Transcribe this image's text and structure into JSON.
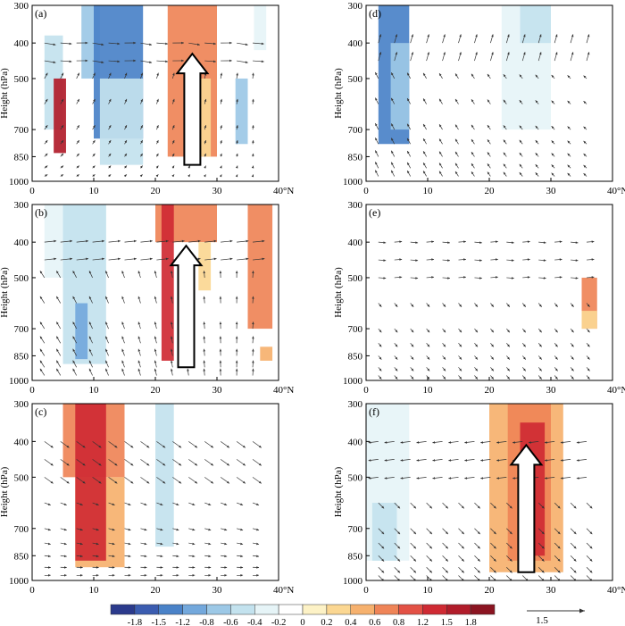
{
  "figure": {
    "colorbar": {
      "labels": [
        "-1.8",
        "-1.5",
        "-1.2",
        "-0.8",
        "-0.6",
        "-0.4",
        "-0.2",
        "0",
        "0.2",
        "0.4",
        "0.6",
        "0.8",
        "1.2",
        "1.5",
        "1.8"
      ],
      "colors": [
        "#2b3a8c",
        "#3b5cb0",
        "#4a82c8",
        "#73a8dc",
        "#9cc8e6",
        "#c3e2ee",
        "#e6f4f7",
        "#ffffff",
        "#fdf2c6",
        "#fbd792",
        "#f6b16e",
        "#ef8457",
        "#e35145",
        "#cf2a33",
        "#b11c2a",
        "#8b1421"
      ],
      "reference_vector_label": "1.5"
    }
  },
  "chart_data": [
    {
      "type": "cross-section",
      "panel_label": "(a)",
      "xlabel": "40°N",
      "ylabel": "Height (hPa)",
      "x_ticks": [
        "0",
        "10",
        "20",
        "30"
      ],
      "y_ticks": [
        "300",
        "400",
        "500",
        "700",
        "850",
        "1000"
      ],
      "xlim": [
        0,
        40
      ],
      "ylim": [
        1000,
        300
      ],
      "shaded": [
        {
          "x": [
            2,
            5
          ],
          "p": [
            380,
            700
          ],
          "value": -0.6
        },
        {
          "x": [
            3.5,
            5.5
          ],
          "p": [
            500,
            830
          ],
          "value": 1.5
        },
        {
          "x": [
            8,
            11
          ],
          "p": [
            300,
            500
          ],
          "value": -0.8
        },
        {
          "x": [
            10,
            18
          ],
          "p": [
            300,
            750
          ],
          "value": -1.5
        },
        {
          "x": [
            11,
            18
          ],
          "p": [
            500,
            900
          ],
          "value": -0.6
        },
        {
          "x": [
            22,
            30
          ],
          "p": [
            300,
            850
          ],
          "value": 0.6
        },
        {
          "x": [
            26,
            29
          ],
          "p": [
            500,
            850
          ],
          "value": 0.2
        },
        {
          "x": [
            36,
            38
          ],
          "p": [
            300,
            420
          ],
          "value": -0.4
        },
        {
          "x": [
            33,
            35
          ],
          "p": [
            500,
            780
          ],
          "value": -0.8
        }
      ],
      "arrow": {
        "x": 26,
        "p_bottom": 900,
        "p_top": 430
      }
    },
    {
      "type": "cross-section",
      "panel_label": "(b)",
      "xlabel": "40°N",
      "ylabel": "Height (hPa)",
      "x_ticks": [
        "0",
        "10",
        "20",
        "30"
      ],
      "y_ticks": [
        "300",
        "400",
        "500",
        "700",
        "850",
        "1000"
      ],
      "xlim": [
        0,
        40
      ],
      "ylim": [
        1000,
        300
      ],
      "shaded": [
        {
          "x": [
            2,
            12
          ],
          "p": [
            300,
            500
          ],
          "value": -0.4
        },
        {
          "x": [
            5,
            12
          ],
          "p": [
            300,
            900
          ],
          "value": -0.6
        },
        {
          "x": [
            7,
            9
          ],
          "p": [
            600,
            870
          ],
          "value": -1.2
        },
        {
          "x": [
            20,
            30
          ],
          "p": [
            300,
            400
          ],
          "value": 0.6
        },
        {
          "x": [
            21,
            23
          ],
          "p": [
            300,
            880
          ],
          "value": 1.2
        },
        {
          "x": [
            27,
            29
          ],
          "p": [
            400,
            550
          ],
          "value": 0.2
        },
        {
          "x": [
            35,
            39
          ],
          "p": [
            300,
            700
          ],
          "value": 0.6
        },
        {
          "x": [
            37,
            39
          ],
          "p": [
            800,
            880
          ],
          "value": 0.4
        }
      ],
      "arrow": {
        "x": 25,
        "p_bottom": 920,
        "p_top": 410
      }
    },
    {
      "type": "cross-section",
      "panel_label": "(c)",
      "xlabel": "40°N",
      "ylabel": "Height (hPa)",
      "x_ticks": [
        "0",
        "10",
        "20",
        "30"
      ],
      "y_ticks": [
        "300",
        "400",
        "500",
        "700",
        "850",
        "1000"
      ],
      "xlim": [
        0,
        40
      ],
      "ylim": [
        1000,
        300
      ],
      "shaded": [
        {
          "x": [
            5,
            15
          ],
          "p": [
            300,
            500
          ],
          "value": 0.6
        },
        {
          "x": [
            7,
            15
          ],
          "p": [
            500,
            920
          ],
          "value": 0.4
        },
        {
          "x": [
            7,
            12
          ],
          "p": [
            300,
            880
          ],
          "value": 1.2
        },
        {
          "x": [
            20,
            23
          ],
          "p": [
            300,
            800
          ],
          "value": -0.6
        }
      ]
    },
    {
      "type": "cross-section",
      "panel_label": "(d)",
      "xlabel": "40°N",
      "ylabel": "Height (hPa)",
      "x_ticks": [
        "0",
        "10",
        "20",
        "30"
      ],
      "y_ticks": [
        "300",
        "400",
        "500",
        "700",
        "850",
        "1000"
      ],
      "xlim": [
        0,
        40
      ],
      "ylim": [
        1000,
        300
      ],
      "shaded": [
        {
          "x": [
            2,
            7
          ],
          "p": [
            300,
            780
          ],
          "value": -1.5
        },
        {
          "x": [
            4,
            7
          ],
          "p": [
            400,
            700
          ],
          "value": -0.8
        },
        {
          "x": [
            22,
            30
          ],
          "p": [
            300,
            700
          ],
          "value": -0.4
        },
        {
          "x": [
            25,
            30
          ],
          "p": [
            300,
            400
          ],
          "value": -0.6
        }
      ]
    },
    {
      "type": "cross-section",
      "panel_label": "(e)",
      "xlabel": "40°N",
      "ylabel": "Height (hPa)",
      "x_ticks": [
        "0",
        "10",
        "20",
        "30"
      ],
      "y_ticks": [
        "300",
        "400",
        "500",
        "700",
        "850",
        "1000"
      ],
      "xlim": [
        0,
        40
      ],
      "ylim": [
        1000,
        300
      ],
      "shaded": [
        {
          "x": [
            35,
            37.5
          ],
          "p": [
            500,
            700
          ],
          "value": 0.6
        },
        {
          "x": [
            35,
            37.5
          ],
          "p": [
            630,
            700
          ],
          "value": 0.2
        }
      ]
    },
    {
      "type": "cross-section",
      "panel_label": "(f)",
      "xlabel": "40°N",
      "ylabel": "Height (hPa)",
      "x_ticks": [
        "0",
        "10",
        "20",
        "30"
      ],
      "y_ticks": [
        "300",
        "400",
        "500",
        "700",
        "850",
        "1000"
      ],
      "xlim": [
        0,
        40
      ],
      "ylim": [
        1000,
        300
      ],
      "shaded": [
        {
          "x": [
            0,
            7
          ],
          "p": [
            300,
            880
          ],
          "value": -0.4
        },
        {
          "x": [
            1,
            5
          ],
          "p": [
            600,
            880
          ],
          "value": -0.6
        },
        {
          "x": [
            20,
            32
          ],
          "p": [
            300,
            950
          ],
          "value": 0.4
        },
        {
          "x": [
            23,
            30
          ],
          "p": [
            300,
            880
          ],
          "value": 0.6
        },
        {
          "x": [
            25,
            29
          ],
          "p": [
            350,
            850
          ],
          "value": 1.2
        }
      ],
      "arrow": {
        "x": 26,
        "p_bottom": 950,
        "p_top": 410
      }
    }
  ]
}
